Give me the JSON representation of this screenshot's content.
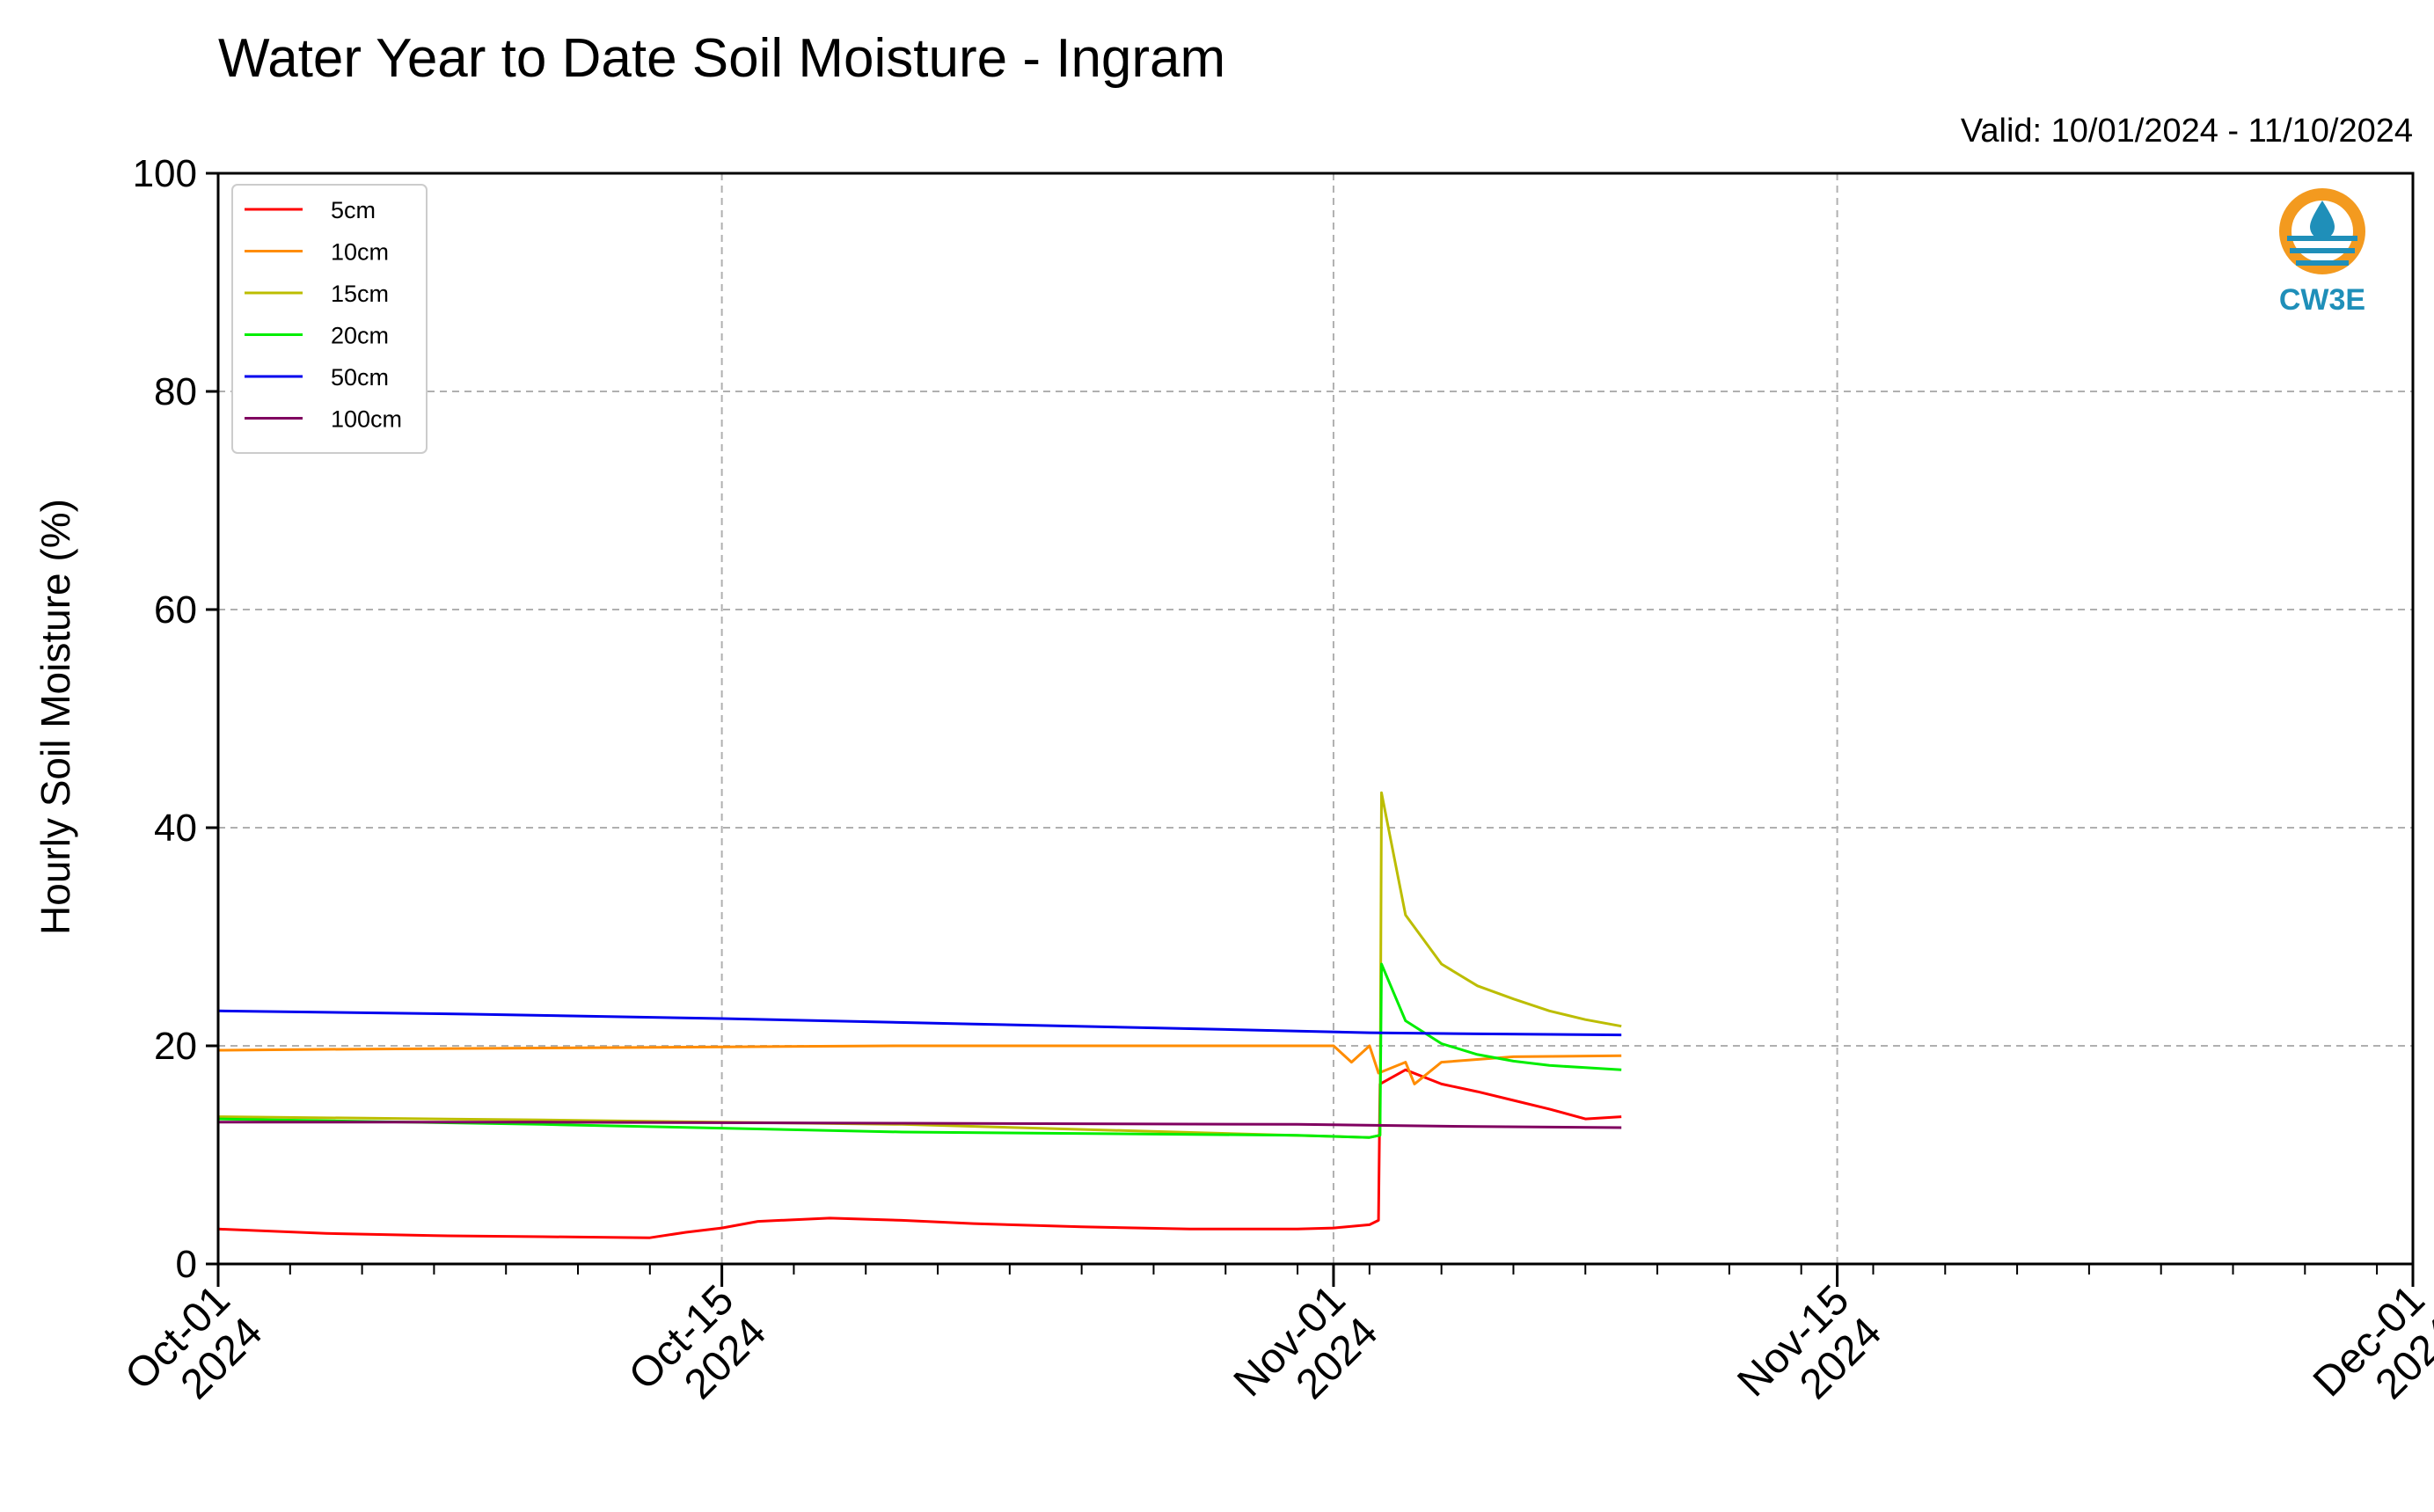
{
  "chart_data": {
    "type": "line",
    "title": "Water Year to Date Soil Moisture - Ingram",
    "valid_text": "Valid: 10/01/2024 - 11/10/2024",
    "xlabel": "",
    "ylabel": "Hourly Soil Moisture (%)",
    "ylim": [
      0,
      100
    ],
    "y_ticks": [
      "0",
      "20",
      "40",
      "60",
      "80",
      "100"
    ],
    "xlim": [
      "2024-10-01",
      "2024-12-01"
    ],
    "x_ticks": [
      {
        "date": "2024-10-01",
        "line1": "Oct-01",
        "line2": "2024"
      },
      {
        "date": "2024-10-15",
        "line1": "Oct-15",
        "line2": "2024"
      },
      {
        "date": "2024-11-01",
        "line1": "Nov-01",
        "line2": "2024"
      },
      {
        "date": "2024-11-15",
        "line1": "Nov-15",
        "line2": "2024"
      },
      {
        "date": "2024-12-01",
        "line1": "Dec-01",
        "line2": "2024"
      }
    ],
    "grid": true,
    "legend_position": "top-left",
    "series": [
      {
        "name": "5cm",
        "color": "#ff0000",
        "x": [
          "2024-10-01",
          "2024-10-04",
          "2024-10-07",
          "2024-10-10",
          "2024-10-13",
          "2024-10-14",
          "2024-10-15",
          "2024-10-16",
          "2024-10-18",
          "2024-10-20",
          "2024-10-22",
          "2024-10-25",
          "2024-10-28",
          "2024-10-31",
          "2024-11-01",
          "2024-11-02",
          "2024-11-02T06",
          "2024-11-02T07",
          "2024-11-03",
          "2024-11-04",
          "2024-11-05",
          "2024-11-06",
          "2024-11-07",
          "2024-11-08",
          "2024-11-09"
        ],
        "values": [
          3.2,
          2.8,
          2.6,
          2.5,
          2.4,
          2.9,
          3.3,
          3.9,
          4.2,
          4.0,
          3.7,
          3.4,
          3.2,
          3.2,
          3.3,
          3.6,
          4.0,
          16.5,
          17.8,
          16.5,
          15.8,
          15.0,
          14.2,
          13.3,
          13.5
        ]
      },
      {
        "name": "10cm",
        "color": "#ff8c00",
        "x": [
          "2024-10-01",
          "2024-10-05",
          "2024-10-10",
          "2024-10-15",
          "2024-10-20",
          "2024-10-25",
          "2024-10-31",
          "2024-11-01",
          "2024-11-01T12",
          "2024-11-02",
          "2024-11-02T06",
          "2024-11-03",
          "2024-11-03T06",
          "2024-11-04",
          "2024-11-06",
          "2024-11-09"
        ],
        "values": [
          19.6,
          19.7,
          19.8,
          19.9,
          20.0,
          20.0,
          20.0,
          20.0,
          18.5,
          20.0,
          17.5,
          18.5,
          16.5,
          18.5,
          19.0,
          19.1
        ]
      },
      {
        "name": "15cm",
        "color": "#bcbd00",
        "x": [
          "2024-10-01",
          "2024-10-10",
          "2024-10-20",
          "2024-11-02",
          "2024-11-02T07",
          "2024-11-02T08",
          "2024-11-03",
          "2024-11-04",
          "2024-11-05",
          "2024-11-06",
          "2024-11-07",
          "2024-11-08",
          "2024-11-09"
        ],
        "values": [
          13.5,
          13.2,
          12.8,
          11.6,
          11.8,
          43.2,
          32.0,
          27.5,
          25.5,
          24.3,
          23.2,
          22.4,
          21.8
        ]
      },
      {
        "name": "20cm",
        "color": "#00ee00",
        "x": [
          "2024-10-01",
          "2024-10-10",
          "2024-10-20",
          "2024-10-31",
          "2024-11-02",
          "2024-11-02T07",
          "2024-11-02T08",
          "2024-11-03",
          "2024-11-04",
          "2024-11-05",
          "2024-11-06",
          "2024-11-07",
          "2024-11-08",
          "2024-11-09"
        ],
        "values": [
          13.3,
          12.8,
          12.1,
          11.8,
          11.6,
          11.8,
          27.5,
          22.3,
          20.2,
          19.2,
          18.6,
          18.2,
          18.0,
          17.8
        ]
      },
      {
        "name": "50cm",
        "color": "#0000ee",
        "x": [
          "2024-10-01",
          "2024-10-08",
          "2024-10-15",
          "2024-10-22",
          "2024-10-29",
          "2024-11-02",
          "2024-11-05",
          "2024-11-09"
        ],
        "values": [
          23.2,
          22.9,
          22.5,
          22.0,
          21.5,
          21.2,
          21.1,
          21.0
        ]
      },
      {
        "name": "100cm",
        "color": "#800060",
        "x": [
          "2024-10-01",
          "2024-10-10",
          "2024-10-20",
          "2024-10-31",
          "2024-11-05",
          "2024-11-09"
        ],
        "values": [
          13.0,
          13.0,
          12.9,
          12.8,
          12.6,
          12.5
        ]
      }
    ]
  },
  "logo": {
    "text": "CW3E"
  }
}
